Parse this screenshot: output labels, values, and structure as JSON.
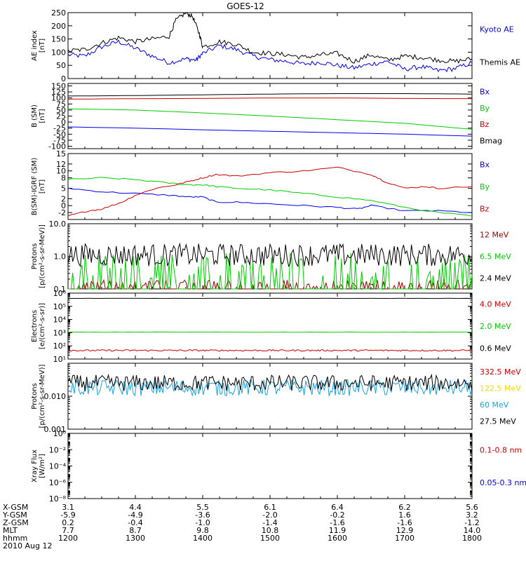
{
  "title": "GOES-12",
  "colors": {
    "black": "#000000",
    "blue": "#0000ee",
    "red": "#cc0000",
    "green": "#00cc00",
    "darkred": "#990000",
    "yellow": "#f4d800",
    "cyan": "#1aa3e0"
  },
  "chart_data": [
    {
      "id": "ae",
      "type": "line",
      "ylabel": "AE index\n[nT]",
      "yscale": "linear",
      "ylim": [
        0,
        250
      ],
      "yticks": [
        0,
        50,
        100,
        150,
        200,
        250
      ],
      "ytick_labels": [
        "0",
        "50",
        "100",
        "150",
        "200",
        "250"
      ],
      "xlim": [
        12.0,
        18.0
      ],
      "series": [
        {
          "name": "Kyoto AE",
          "color": "blue",
          "x": [
            12.0,
            12.25,
            12.5,
            12.75,
            13.0,
            13.25,
            13.5,
            13.75,
            13.9,
            14.0,
            14.25,
            14.5,
            14.75,
            15.0,
            15.25,
            15.5,
            15.75,
            16.0,
            16.25,
            16.5,
            16.75,
            17.0,
            17.25,
            17.5,
            17.75,
            18.0
          ],
          "y": [
            90,
            85,
            120,
            140,
            115,
            85,
            60,
            75,
            70,
            95,
            125,
            110,
            85,
            72,
            65,
            55,
            62,
            50,
            40,
            55,
            65,
            35,
            45,
            30,
            38,
            60
          ]
        },
        {
          "name": "Themis AE",
          "color": "black",
          "x": [
            12.0,
            12.25,
            12.5,
            12.75,
            13.0,
            13.25,
            13.5,
            13.6,
            13.75,
            13.85,
            13.95,
            14.0,
            14.25,
            14.5,
            14.75,
            15.0,
            15.25,
            15.5,
            15.75,
            16.0,
            16.25,
            16.5,
            16.75,
            17.0,
            17.25,
            17.5,
            17.75,
            18.0
          ],
          "y": [
            105,
            110,
            135,
            155,
            140,
            150,
            160,
            220,
            250,
            235,
            170,
            120,
            140,
            130,
            100,
            95,
            90,
            80,
            90,
            95,
            65,
            90,
            70,
            85,
            80,
            70,
            65,
            75
          ]
        }
      ]
    },
    {
      "id": "bsm",
      "type": "line",
      "ylabel": "B (SM)\n[nT]",
      "yscale": "linear",
      "ylim": [
        -110,
        160
      ],
      "yticks": [
        -100,
        -75,
        -50,
        -25,
        0,
        25,
        50,
        75,
        100,
        125,
        150
      ],
      "ytick_labels": [
        "-100",
        "-75",
        "-50",
        "-25",
        "0",
        "25",
        "50",
        "75",
        "100",
        "125",
        "150"
      ],
      "xlim": [
        12.0,
        18.0
      ],
      "series": [
        {
          "name": "Bx",
          "color": "blue",
          "x": [
            12,
            13,
            14,
            15,
            16,
            17,
            18
          ],
          "y": [
            -20,
            -25,
            -32,
            -38,
            -44,
            -50,
            -58
          ]
        },
        {
          "name": "By",
          "color": "green",
          "x": [
            12,
            13,
            14,
            15,
            16,
            17,
            18
          ],
          "y": [
            55,
            50,
            38,
            25,
            10,
            -5,
            -30
          ]
        },
        {
          "name": "Bz",
          "color": "red",
          "x": [
            12,
            13,
            14,
            15,
            16,
            17,
            18
          ],
          "y": [
            95,
            97,
            98,
            100,
            100,
            98,
            97
          ]
        },
        {
          "name": "Bmag",
          "color": "black",
          "x": [
            12,
            13,
            14,
            15,
            16,
            17,
            18
          ],
          "y": [
            108,
            110,
            113,
            116,
            118,
            118,
            116
          ]
        }
      ]
    },
    {
      "id": "bdiff",
      "type": "line",
      "ylabel": "B(SM)-IGRF (SM)\n[nT]",
      "yscale": "linear",
      "ylim": [
        -4,
        15
      ],
      "yticks": [
        -2,
        0,
        2,
        5,
        8,
        10,
        12,
        15
      ],
      "ytick_labels": [
        "-2",
        "0",
        "2",
        "5",
        "8",
        "10",
        "12",
        "15"
      ],
      "xlim": [
        12.0,
        18.0
      ],
      "series": [
        {
          "name": "Bx",
          "color": "blue",
          "x": [
            12.0,
            12.5,
            13.0,
            13.5,
            13.8,
            14.0,
            14.2,
            14.5,
            15.0,
            15.5,
            16.0,
            16.3,
            16.5,
            17.0,
            17.5,
            18.0
          ],
          "y": [
            5,
            4,
            3.5,
            3,
            2.5,
            2.5,
            1,
            1,
            0.5,
            0,
            -0.5,
            -1,
            0,
            -1.5,
            -1.5,
            -2
          ]
        },
        {
          "name": "By",
          "color": "green",
          "x": [
            12.0,
            12.5,
            13.0,
            13.5,
            13.8,
            14.0,
            14.2,
            14.5,
            15.0,
            15.5,
            16.0,
            16.5,
            17.0,
            17.5,
            18.0
          ],
          "y": [
            7.5,
            8,
            7.5,
            6.5,
            6,
            6,
            5.5,
            5,
            4.5,
            3.5,
            2.5,
            1.5,
            -0.5,
            -2,
            -3
          ]
        },
        {
          "name": "Bz",
          "color": "red",
          "x": [
            12.0,
            12.3,
            12.5,
            12.8,
            13.0,
            13.3,
            13.6,
            13.8,
            14.0,
            14.2,
            14.5,
            15.0,
            15.5,
            16.0,
            16.5,
            16.7,
            17.0,
            17.3,
            17.5,
            18.0
          ],
          "y": [
            -3,
            -1.5,
            -1,
            1,
            3,
            5,
            6,
            7,
            8,
            9,
            8.5,
            9.5,
            10,
            11,
            9,
            7,
            5,
            5.5,
            5,
            5.5
          ]
        }
      ]
    },
    {
      "id": "protons1",
      "type": "line",
      "ylabel": "Protons\n[p/(cm²-s-sr-MeV)]",
      "yscale": "log",
      "ylim": [
        0.1,
        10
      ],
      "yticks": [
        0.1,
        1,
        10
      ],
      "ytick_labels": [
        "0.1",
        "1.0",
        "10.0"
      ],
      "xlim": [
        12.0,
        18.0
      ],
      "series": [
        {
          "name": "12 MeV",
          "color": "darkred",
          "level": 0.12,
          "spread": 0.1,
          "style": "sparse"
        },
        {
          "name": "6.5 MeV",
          "color": "green",
          "level": 0.2,
          "spread": 0.4,
          "style": "sparse"
        },
        {
          "name": "2.4 MeV",
          "color": "black",
          "level": 1.1,
          "spread": 0.35,
          "style": "noisy"
        }
      ]
    },
    {
      "id": "electrons",
      "type": "line",
      "ylabel": "Electrons\n[e/(cm²-s-sr)]",
      "yscale": "log",
      "ylim": [
        10,
        1000000
      ],
      "yticks": [
        10,
        100,
        1000,
        10000,
        100000,
        1000000
      ],
      "ytick_labels": [
        "10¹",
        "10²",
        "10³",
        "10⁴",
        "10⁵",
        "10⁶"
      ],
      "xlim": [
        12.0,
        18.0
      ],
      "series": [
        {
          "name": "4.0 MeV",
          "color": "red",
          "level": 45,
          "spread": 0.06,
          "style": "noisy"
        },
        {
          "name": "2.0 MeV",
          "color": "green",
          "level": 1100,
          "spread": 0.02,
          "style": "smooth"
        },
        {
          "name": "0.6 MeV",
          "color": "black",
          "level": 400000,
          "spread": 0.01,
          "style": "smooth"
        }
      ]
    },
    {
      "id": "protons2",
      "type": "line",
      "ylabel": "Protons\n[p/(cm²-s-sr-MeV)]",
      "yscale": "log",
      "ylim": [
        0.001,
        0.1
      ],
      "yticks": [
        0.001,
        0.01
      ],
      "ytick_labels": [
        "0.001",
        "0.010"
      ],
      "xlim": [
        12.0,
        18.0
      ],
      "series": [
        {
          "name": "332.5 MeV",
          "color": "red"
        },
        {
          "name": "122.5 MeV",
          "color": "yellow"
        },
        {
          "name": "60 MeV",
          "color": "cyan",
          "level": 0.018,
          "spread": 0.25,
          "style": "noisy"
        },
        {
          "name": "27.5 MeV",
          "color": "black",
          "level": 0.025,
          "spread": 0.25,
          "style": "noisy"
        }
      ]
    },
    {
      "id": "xray",
      "type": "line",
      "ylabel": "Xray Flux\n[W/m²]",
      "yscale": "log",
      "ylim": [
        1e-08,
        1
      ],
      "yticks": [
        1e-08,
        1e-06,
        0.0001,
        0.01,
        1
      ],
      "ytick_labels": [
        "10⁻⁸",
        "10⁻⁶",
        "10⁻⁴",
        "10⁻²",
        "10⁰"
      ],
      "xlim": [
        12.0,
        18.0
      ],
      "series": [
        {
          "name": "0.1-0.8 nm",
          "color": "red"
        },
        {
          "name": "0.05-0.3 nm",
          "color": "blue"
        }
      ]
    }
  ],
  "ephemeris": {
    "rows": [
      {
        "label": "X-GSM",
        "values": [
          "3.1",
          "4.4",
          "5.5",
          "6.1",
          "6.4",
          "6.2",
          "5.6"
        ]
      },
      {
        "label": "Y-GSM",
        "values": [
          "-5.9",
          "-4.9",
          "-3.6",
          "-2.0",
          "-0.2",
          "1.6",
          "3.2"
        ]
      },
      {
        "label": "Z-GSM",
        "values": [
          "0.2",
          "-0.4",
          "-1.0",
          "-1.4",
          "-1.6",
          "-1.6",
          "-1.2"
        ]
      },
      {
        "label": "MLT",
        "values": [
          "7.7",
          "8.7",
          "9.8",
          "10.8",
          "11.9",
          "12.9",
          "14.0"
        ]
      },
      {
        "label": "hhmm",
        "values": [
          "1200",
          "1300",
          "1400",
          "1500",
          "1600",
          "1700",
          "1800"
        ]
      }
    ],
    "date": "2010 Aug 12"
  }
}
